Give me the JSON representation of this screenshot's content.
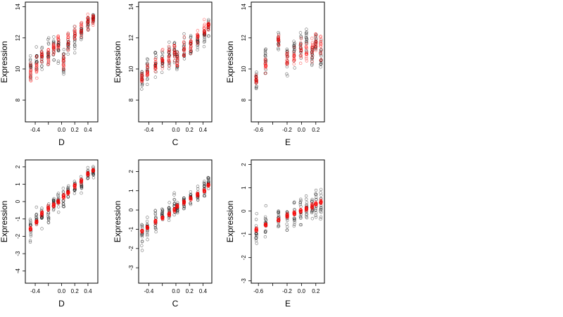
{
  "colors": {
    "black_points": "#000000",
    "red_points": "#ff0000",
    "background": "#ffffff"
  },
  "chart_data": [
    {
      "type": "scatter",
      "xlabel": "D",
      "ylabel": "Expression",
      "xlim": [
        -0.55,
        0.55
      ],
      "ylim": [
        6.6,
        14.3
      ],
      "xticks": [
        -0.4,
        -0.2,
        0.0,
        0.2,
        0.4
      ],
      "xtick_labels": [
        "-0.4",
        "",
        "0.0",
        "0.2",
        "0.4"
      ],
      "yticks": [
        8,
        10,
        12,
        14
      ],
      "ytick_labels": [
        "8",
        "10",
        "12",
        "14"
      ],
      "groups": [
        [
          -0.47,
          10.0,
          1.2,
          9.8,
          1.0
        ],
        [
          -0.38,
          10.5,
          1.1,
          10.3,
          0.9
        ],
        [
          -0.3,
          10.8,
          1.0,
          10.6,
          0.9
        ],
        [
          -0.2,
          11.0,
          1.1,
          11.0,
          0.9
        ],
        [
          -0.12,
          11.3,
          1.0,
          11.3,
          0.8
        ],
        [
          -0.05,
          11.5,
          1.0,
          11.8,
          0.8
        ],
        [
          0.03,
          10.6,
          1.5,
          10.2,
          0.9
        ],
        [
          0.1,
          11.8,
          1.0,
          11.8,
          0.8
        ],
        [
          0.2,
          11.9,
          1.0,
          12.2,
          0.8
        ],
        [
          0.3,
          12.4,
          0.9,
          12.6,
          0.7
        ],
        [
          0.4,
          12.9,
          0.8,
          13.0,
          0.6
        ],
        [
          0.48,
          13.2,
          0.6,
          13.1,
          0.4
        ]
      ]
    },
    {
      "type": "scatter",
      "xlabel": "C",
      "ylabel": "Expression",
      "xlim": [
        -0.55,
        0.53
      ],
      "ylim": [
        6.6,
        14.3
      ],
      "xticks": [
        -0.4,
        -0.2,
        0.0,
        0.2,
        0.4
      ],
      "xtick_labels": [
        "-0.4",
        "",
        "0.0",
        "0.2",
        "0.4"
      ],
      "yticks": [
        8,
        10,
        12,
        14
      ],
      "ytick_labels": [
        "8",
        "10",
        "12",
        "14"
      ],
      "groups": [
        [
          -0.5,
          9.2,
          1.1,
          9.3,
          0.5
        ],
        [
          -0.42,
          9.8,
          1.1,
          9.9,
          0.8
        ],
        [
          -0.3,
          10.3,
          1.1,
          10.2,
          0.8
        ],
        [
          -0.2,
          10.6,
          1.0,
          10.6,
          0.8
        ],
        [
          -0.1,
          10.8,
          1.0,
          10.7,
          0.8
        ],
        [
          -0.02,
          11.0,
          1.1,
          11.2,
          0.8
        ],
        [
          0.02,
          10.8,
          1.0,
          10.5,
          0.6
        ],
        [
          0.12,
          11.3,
          0.9,
          11.3,
          0.7
        ],
        [
          0.22,
          11.6,
          0.9,
          11.6,
          0.7
        ],
        [
          0.32,
          11.8,
          0.9,
          12.0,
          0.7
        ],
        [
          0.42,
          12.1,
          0.9,
          12.6,
          0.7
        ],
        [
          0.48,
          12.6,
          0.8,
          12.8,
          0.6
        ]
      ]
    },
    {
      "type": "scatter",
      "xlabel": "E",
      "ylabel": "Expression",
      "xlim": [
        -0.7,
        0.32
      ],
      "ylim": [
        6.6,
        14.3
      ],
      "xticks": [
        -0.6,
        -0.4,
        -0.2,
        0.0,
        0.2
      ],
      "xtick_labels": [
        "-0.6",
        "",
        "-0.2",
        "0.0",
        "0.2"
      ],
      "yticks": [
        8,
        10,
        12,
        14
      ],
      "ytick_labels": [
        "8",
        "10",
        "12",
        "14"
      ],
      "groups": [
        [
          -0.63,
          9.3,
          1.1,
          9.3,
          0.4
        ],
        [
          -0.5,
          10.6,
          1.0,
          10.2,
          0.8
        ],
        [
          -0.32,
          12.0,
          0.9,
          11.8,
          0.7
        ],
        [
          -0.2,
          10.6,
          1.1,
          10.5,
          0.8
        ],
        [
          -0.1,
          11.2,
          1.0,
          10.8,
          0.8
        ],
        [
          -0.01,
          11.4,
          1.2,
          11.4,
          0.9
        ],
        [
          0.07,
          11.8,
          1.0,
          11.0,
          0.9
        ],
        [
          0.15,
          11.2,
          1.0,
          11.3,
          0.9
        ],
        [
          0.2,
          11.9,
          0.9,
          11.8,
          0.8
        ],
        [
          0.27,
          10.8,
          1.4,
          11.4,
          1.2
        ]
      ]
    },
    {
      "type": "scatter",
      "xlabel": "D",
      "ylabel": "Expression",
      "xlim": [
        -0.55,
        0.55
      ],
      "ylim": [
        -4.7,
        2.4
      ],
      "xticks": [
        -0.4,
        -0.2,
        0.0,
        0.2,
        0.4
      ],
      "xtick_labels": [
        "-0.4",
        "",
        "0.0",
        "0.2",
        "0.4"
      ],
      "yticks": [
        -4,
        -3,
        -2,
        -1,
        0,
        1,
        2
      ],
      "ytick_labels": [
        "-4",
        "-3",
        "-2",
        "-1",
        "0",
        "1",
        "2"
      ],
      "groups": [
        [
          -0.47,
          -1.5,
          0.8,
          -1.6,
          0.15
        ],
        [
          -0.38,
          -1.1,
          0.7,
          -1.2,
          0.15
        ],
        [
          -0.3,
          -0.9,
          0.7,
          -0.7,
          0.15
        ],
        [
          -0.2,
          -0.6,
          0.7,
          -0.4,
          0.15
        ],
        [
          -0.12,
          -0.2,
          0.7,
          -0.2,
          0.15
        ],
        [
          -0.05,
          0.0,
          0.7,
          0.0,
          0.15
        ],
        [
          0.03,
          0.2,
          0.7,
          0.3,
          0.15
        ],
        [
          0.1,
          0.6,
          0.6,
          0.5,
          0.15
        ],
        [
          0.2,
          0.8,
          0.6,
          0.9,
          0.15
        ],
        [
          0.3,
          1.0,
          0.6,
          1.2,
          0.15
        ],
        [
          0.4,
          1.5,
          0.5,
          1.6,
          0.12
        ],
        [
          0.48,
          1.7,
          0.4,
          1.8,
          0.1
        ]
      ]
    },
    {
      "type": "scatter",
      "xlabel": "C",
      "ylabel": "Expression",
      "xlim": [
        -0.55,
        0.53
      ],
      "ylim": [
        -3.8,
        2.6
      ],
      "xticks": [
        -0.4,
        -0.2,
        0.0,
        0.2,
        0.4
      ],
      "xtick_labels": [
        "-0.4",
        "",
        "0.0",
        "0.2",
        "0.4"
      ],
      "yticks": [
        -3,
        -2,
        -1,
        0,
        1,
        2
      ],
      "ytick_labels": [
        "-3",
        "-2",
        "-1",
        "0",
        "1",
        "2"
      ],
      "groups": [
        [
          -0.5,
          -1.3,
          0.9,
          -1.1,
          0.1
        ],
        [
          -0.42,
          -0.9,
          0.8,
          -0.9,
          0.1
        ],
        [
          -0.3,
          -0.5,
          0.7,
          -0.6,
          0.1
        ],
        [
          -0.2,
          -0.3,
          0.6,
          -0.4,
          0.1
        ],
        [
          -0.1,
          -0.1,
          0.6,
          -0.2,
          0.1
        ],
        [
          -0.02,
          0.2,
          0.7,
          0.0,
          0.1
        ],
        [
          0.02,
          0.1,
          0.6,
          0.2,
          0.1
        ],
        [
          0.12,
          0.4,
          0.5,
          0.4,
          0.1
        ],
        [
          0.22,
          0.6,
          0.5,
          0.6,
          0.1
        ],
        [
          0.32,
          0.8,
          0.5,
          0.8,
          0.1
        ],
        [
          0.42,
          1.1,
          0.5,
          1.0,
          0.1
        ],
        [
          0.48,
          1.4,
          0.5,
          1.3,
          0.1
        ]
      ]
    },
    {
      "type": "scatter",
      "xlabel": "E",
      "ylabel": "Expression",
      "xlim": [
        -0.7,
        0.32
      ],
      "ylim": [
        -3.1,
        2.2
      ],
      "xticks": [
        -0.6,
        -0.4,
        -0.2,
        0.0,
        0.2
      ],
      "xtick_labels": [
        "-0.6",
        "",
        "-0.2",
        "0.0",
        "0.2"
      ],
      "yticks": [
        -3,
        -2,
        -1,
        0,
        1,
        2
      ],
      "ytick_labels": [
        "-3",
        "-2",
        "-1",
        "0",
        "1",
        "2"
      ],
      "groups": [
        [
          -0.63,
          -0.9,
          0.8,
          -0.8,
          0.1
        ],
        [
          -0.5,
          -0.5,
          0.7,
          -0.6,
          0.1
        ],
        [
          -0.32,
          -0.3,
          0.7,
          -0.4,
          0.1
        ],
        [
          -0.2,
          -0.3,
          0.7,
          -0.2,
          0.1
        ],
        [
          -0.1,
          -0.1,
          0.7,
          -0.1,
          0.1
        ],
        [
          -0.01,
          0.0,
          0.7,
          0.0,
          0.1
        ],
        [
          0.07,
          0.1,
          0.6,
          0.1,
          0.1
        ],
        [
          0.15,
          0.2,
          0.6,
          0.2,
          0.1
        ],
        [
          0.2,
          0.3,
          0.6,
          0.3,
          0.1
        ],
        [
          0.27,
          0.4,
          0.9,
          0.4,
          0.1
        ]
      ]
    }
  ]
}
